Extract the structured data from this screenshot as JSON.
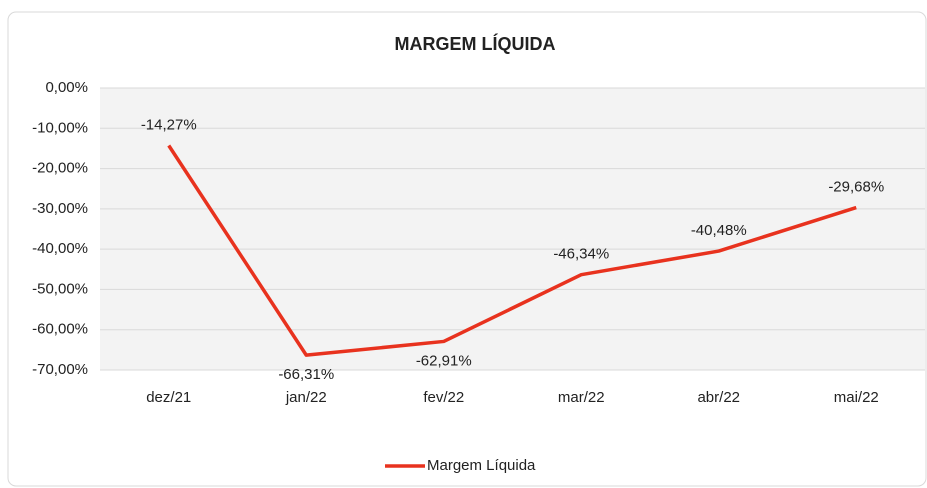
{
  "chart_data": {
    "type": "line",
    "title": "MARGEM LÍQUIDA",
    "categories": [
      "dez/21",
      "jan/22",
      "fev/22",
      "mar/22",
      "abr/22",
      "mai/22"
    ],
    "series": [
      {
        "name": "Margem Líquida",
        "color": "#e8321e",
        "values": [
          -14.27,
          -66.31,
          -62.91,
          -46.34,
          -40.48,
          -29.68
        ],
        "value_labels": [
          "-14,27%",
          "-66,31%",
          "-62,91%",
          "-46,34%",
          "-40,48%",
          "-29,68%"
        ]
      }
    ],
    "ylim": [
      -70,
      0
    ],
    "yticks": [
      {
        "value": 0,
        "label": "0,00%"
      },
      {
        "value": -10,
        "label": "-10,00%"
      },
      {
        "value": -20,
        "label": "-20,00%"
      },
      {
        "value": -30,
        "label": "-30,00%"
      },
      {
        "value": -40,
        "label": "-40,00%"
      },
      {
        "value": -50,
        "label": "-50,00%"
      },
      {
        "value": -60,
        "label": "-60,00%"
      },
      {
        "value": -70,
        "label": "-70,00%"
      }
    ],
    "grid": true,
    "legend": "bottom"
  }
}
